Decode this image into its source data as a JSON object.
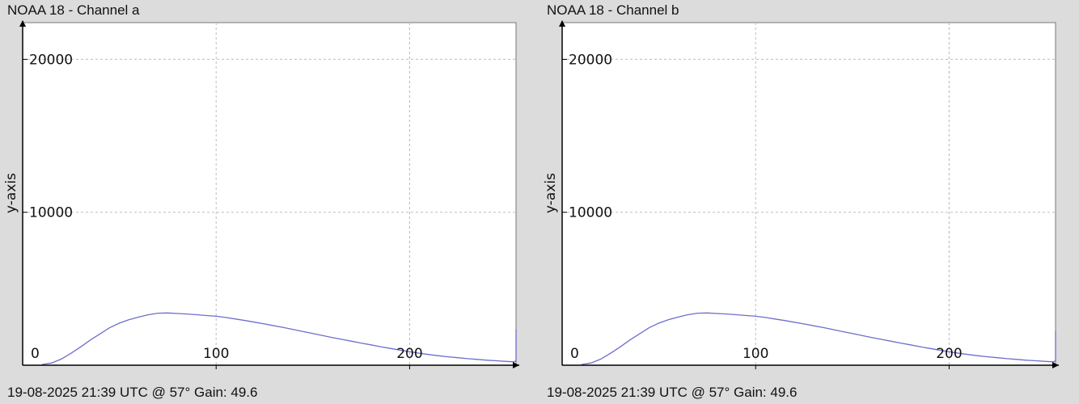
{
  "panels": [
    {
      "title": "NOAA 18 - Channel a",
      "footer": "19-08-2025 21:39 UTC @ 57° Gain: 49.6"
    },
    {
      "title": "NOAA 18 - Channel b",
      "footer": "19-08-2025 21:39 UTC @ 57° Gain: 49.6"
    }
  ],
  "colors": {
    "series": "#6e6ecc",
    "grid": "#bdbdbd",
    "axis": "#000000",
    "plot_bg": "#ffffff",
    "window_bg": "#dcdcdc"
  },
  "chart_data": [
    {
      "type": "line",
      "title": "NOAA 18 - Channel a",
      "xlabel": "",
      "ylabel": "y-axis",
      "xlim": [
        0,
        255
      ],
      "ylim": [
        0,
        22400
      ],
      "x_ticks": [
        0,
        100,
        200
      ],
      "y_ticks": [
        10000,
        20000
      ],
      "x_tick_labels": [
        "0",
        "100",
        "200"
      ],
      "y_tick_labels": [
        "10000",
        "20000"
      ],
      "grid": true,
      "series": [
        {
          "x": [
            10,
            15,
            20,
            25,
            30,
            35,
            40,
            45,
            50,
            55,
            60,
            65,
            70,
            75,
            80,
            85,
            90,
            95,
            100,
            105,
            110,
            115,
            120,
            125,
            130,
            135,
            140,
            145,
            150,
            155,
            160,
            165,
            170,
            175,
            180,
            185,
            190,
            195,
            200,
            205,
            210,
            215,
            220,
            225,
            230,
            235,
            240,
            245,
            250,
            254,
            255,
            255
          ],
          "y": [
            50,
            150,
            400,
            780,
            1200,
            1650,
            2050,
            2450,
            2750,
            2980,
            3150,
            3300,
            3400,
            3420,
            3380,
            3350,
            3300,
            3250,
            3200,
            3120,
            3020,
            2920,
            2810,
            2700,
            2580,
            2460,
            2330,
            2200,
            2070,
            1940,
            1810,
            1690,
            1570,
            1450,
            1330,
            1210,
            1100,
            990,
            880,
            780,
            700,
            620,
            550,
            490,
            430,
            380,
            330,
            290,
            250,
            220,
            300,
            2350
          ]
        }
      ]
    },
    {
      "type": "line",
      "title": "NOAA 18 - Channel b",
      "xlabel": "",
      "ylabel": "y-axis",
      "xlim": [
        0,
        255
      ],
      "ylim": [
        0,
        22400
      ],
      "x_ticks": [
        0,
        100,
        200
      ],
      "y_ticks": [
        10000,
        20000
      ],
      "x_tick_labels": [
        "0",
        "100",
        "200"
      ],
      "y_tick_labels": [
        "10000",
        "20000"
      ],
      "grid": true,
      "series": [
        {
          "x": [
            10,
            15,
            20,
            25,
            30,
            35,
            40,
            45,
            50,
            55,
            60,
            65,
            70,
            75,
            80,
            85,
            90,
            95,
            100,
            105,
            110,
            115,
            120,
            125,
            130,
            135,
            140,
            145,
            150,
            155,
            160,
            165,
            170,
            175,
            180,
            185,
            190,
            195,
            200,
            205,
            210,
            215,
            220,
            225,
            230,
            235,
            240,
            245,
            250,
            254,
            255,
            255
          ],
          "y": [
            50,
            150,
            400,
            780,
            1200,
            1650,
            2050,
            2450,
            2750,
            2980,
            3150,
            3300,
            3400,
            3420,
            3380,
            3350,
            3300,
            3250,
            3200,
            3120,
            3020,
            2920,
            2810,
            2700,
            2580,
            2460,
            2330,
            2200,
            2070,
            1940,
            1810,
            1690,
            1570,
            1450,
            1330,
            1210,
            1100,
            990,
            880,
            780,
            700,
            620,
            550,
            490,
            430,
            380,
            330,
            290,
            250,
            220,
            300,
            2250
          ]
        }
      ]
    }
  ]
}
